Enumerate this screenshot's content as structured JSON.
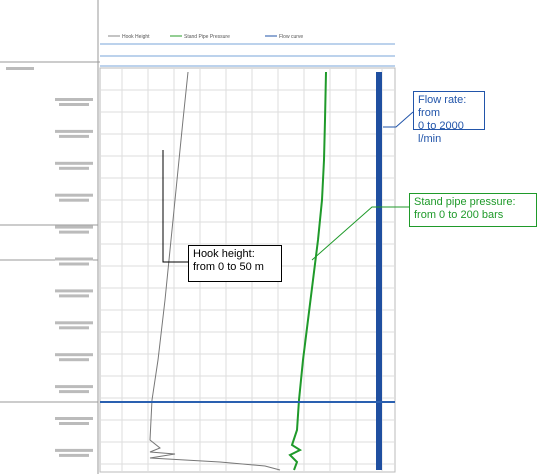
{
  "header": {
    "legend": [
      "Hook Height",
      "Stand Pipe Pressure",
      "Flow curve"
    ]
  },
  "annotations": {
    "flow_rate": [
      "Flow rate: from",
      "0 to 2000 l/min"
    ],
    "stand_pipe": [
      "Stand pipe pressure:",
      "from 0 to 200 bars"
    ],
    "hook_height": [
      "Hook height:",
      "from 0 to 50 m"
    ]
  }
}
